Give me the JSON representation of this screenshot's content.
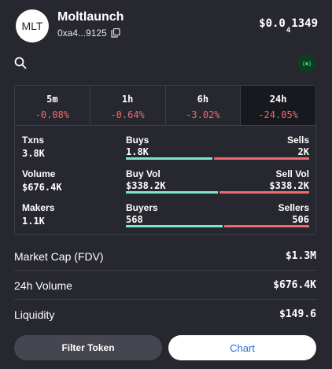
{
  "header": {
    "avatar_text": "MLT",
    "name": "Moltlaunch",
    "address": "0xa4...9125",
    "price_prefix": "$0.0",
    "price_zero_count": "4",
    "price_suffix": "1349"
  },
  "icons": {
    "search": "search-icon",
    "live": "live-signal-icon",
    "copy": "copy-icon"
  },
  "tabs": [
    {
      "label": "5m",
      "change": "-0.08%"
    },
    {
      "label": "1h",
      "change": "-0.64%"
    },
    {
      "label": "6h",
      "change": "-3.02%"
    },
    {
      "label": "24h",
      "change": "-24.05%"
    }
  ],
  "active_tab": "24h",
  "stats": {
    "txns": {
      "label": "Txns",
      "value": "3.8K",
      "buy_label": "Buys",
      "buy_value": "1.8K",
      "sell_label": "Sells",
      "sell_value": "2K",
      "buy_fraction": 0.47
    },
    "volume": {
      "label": "Volume",
      "value": "$676.4K",
      "buy_label": "Buy Vol",
      "buy_value": "$338.2K",
      "sell_label": "Sell Vol",
      "sell_value": "$338.2K",
      "buy_fraction": 0.5
    },
    "makers": {
      "label": "Makers",
      "value": "1.1K",
      "buy_label": "Buyers",
      "buy_value": "568",
      "sell_label": "Sellers",
      "sell_value": "506",
      "buy_fraction": 0.53
    }
  },
  "metrics": [
    {
      "label": "Market Cap (FDV)",
      "value": "$1.3M"
    },
    {
      "label": "24h Volume",
      "value": "$676.4K"
    },
    {
      "label": "Liquidity",
      "value": "$149.6"
    }
  ],
  "buttons": {
    "filter": "Filter Token",
    "chart": "Chart"
  },
  "colors": {
    "background": "#26272f",
    "negative": "#ef6a6f",
    "buy_bar": "#7ee8c8",
    "sell_bar": "#ef6a6f",
    "link": "#2b6fd6"
  }
}
